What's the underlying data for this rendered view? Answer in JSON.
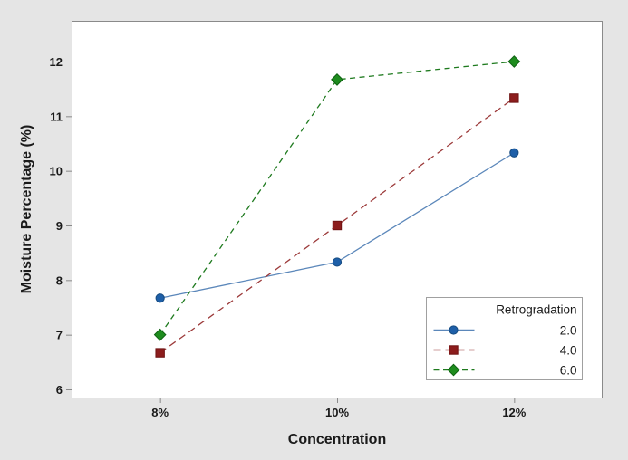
{
  "colors": {
    "canvas_bg": "#e5e5e5",
    "plot_bg": "#ffffff",
    "plot_border": "#8a8a8a",
    "tick": "#8a8a8a",
    "text": "#1a1a1a",
    "legend_border": "#a0a0a0",
    "legend_bg": "#ffffff"
  },
  "chart_data": {
    "type": "line",
    "title": "",
    "xlabel": "Concentration",
    "ylabel": "Moisture Percentage (%)",
    "categories": [
      "8%",
      "10%",
      "12%"
    ],
    "y_ticks": [
      6,
      7,
      8,
      9,
      10,
      11,
      12
    ],
    "ylim": [
      6,
      12.9
    ],
    "grid": false,
    "top_reference_line": true,
    "legend": {
      "title": "Retrogradation",
      "position": "bottom-right-inside"
    },
    "series": [
      {
        "name": "2.0",
        "values": [
          7.67,
          8.33,
          10.33
        ],
        "marker": "circle",
        "marker_color": "#1E5FA8",
        "marker_edge": "#164B80",
        "line_color": "#5B87BA",
        "line_dash": ""
      },
      {
        "name": "4.0",
        "values": [
          6.67,
          9.0,
          11.33
        ],
        "marker": "square",
        "marker_color": "#8C1D1D",
        "marker_edge": "#6E1212",
        "line_color": "#9C3A3A",
        "line_dash": "8,5"
      },
      {
        "name": "6.0",
        "values": [
          7.0,
          11.67,
          12.0
        ],
        "marker": "diamond",
        "marker_color": "#1E8C1E",
        "marker_edge": "#0F6212",
        "line_color": "#1E7A1E",
        "line_dash": "6,4.5"
      }
    ]
  }
}
